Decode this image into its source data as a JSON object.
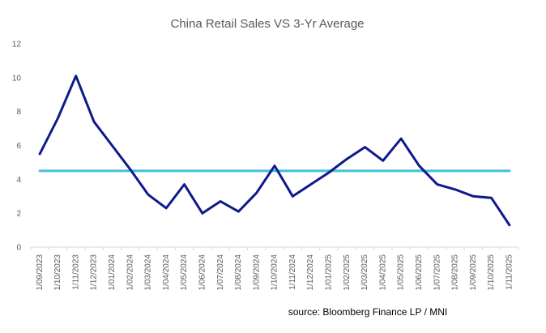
{
  "chart_data": {
    "type": "line",
    "title": "China Retail Sales VS 3-Yr Average",
    "xlabel": "",
    "ylabel": "",
    "ylim": [
      0,
      12
    ],
    "yticks": [
      "0",
      "2",
      "4",
      "6",
      "8",
      "10",
      "12"
    ],
    "grid": false,
    "categories": [
      "1/09/2023",
      "1/10/2023",
      "1/11/2023",
      "1/12/2023",
      "1/01/2024",
      "1/02/2024",
      "1/03/2024",
      "1/04/2024",
      "1/05/2024",
      "1/06/2024",
      "1/07/2024",
      "1/08/2024",
      "1/09/2024",
      "1/10/2024",
      "1/11/2024",
      "1/12/2024",
      "1/01/2025",
      "1/02/2025",
      "1/03/2025",
      "1/04/2025",
      "1/05/2025",
      "1/06/2025",
      "1/07/2025",
      "1/08/2025",
      "1/09/2025",
      "1/10/2025",
      "1/11/2025"
    ],
    "series": [
      {
        "name": "Retail Sales",
        "color": "#0e1a8c",
        "values": [
          5.5,
          7.6,
          10.1,
          7.4,
          6.0,
          4.6,
          3.1,
          2.3,
          3.7,
          2.0,
          2.7,
          2.1,
          3.2,
          4.8,
          3.0,
          3.7,
          4.4,
          5.2,
          5.9,
          5.1,
          6.4,
          4.8,
          3.7,
          3.4,
          3.0,
          2.9,
          1.3
        ]
      },
      {
        "name": "3-Yr Average",
        "color": "#3fc1d9",
        "values": [
          4.5,
          4.5,
          4.5,
          4.5,
          4.5,
          4.5,
          4.5,
          4.5,
          4.5,
          4.5,
          4.5,
          4.5,
          4.5,
          4.5,
          4.5,
          4.5,
          4.5,
          4.5,
          4.5,
          4.5,
          4.5,
          4.5,
          4.5,
          4.5,
          4.5,
          4.5,
          4.5
        ]
      }
    ],
    "axis_color": "#d9d9d9",
    "source": "source:  Bloomberg Finance LP / MNI"
  }
}
